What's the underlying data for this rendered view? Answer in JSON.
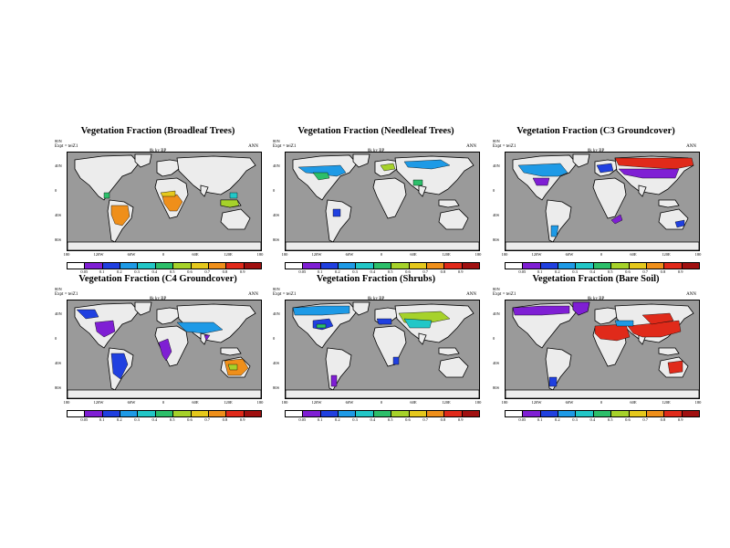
{
  "colorbar": {
    "labels": [
      "0.05",
      "0.1",
      "0.2",
      "0.3",
      "0.4",
      "0.5",
      "0.6",
      "0.7",
      "0.8",
      "0.9"
    ],
    "colors": [
      "#ffffff",
      "#7f1fd4",
      "#2040e0",
      "#1e9ae6",
      "#22c7c7",
      "#2cbf6a",
      "#a6d22a",
      "#e5c81c",
      "#ef8f1a",
      "#e02a1a",
      "#a01010"
    ]
  },
  "axes": {
    "lat_labels": [
      "80N",
      "40N",
      "0",
      "40S",
      "80S"
    ],
    "lon_labels": [
      "180",
      "120W",
      "60W",
      "0",
      "60E",
      "120E",
      "180"
    ]
  },
  "panels": [
    {
      "title": "Vegetation Fraction (Broadleaf Trees)",
      "expt": "Expt = teiZ1",
      "period": "0k ky BP",
      "season": "ANN",
      "vegetation": "broadleaf"
    },
    {
      "title": "Vegetation Fraction (Needleleaf Trees)",
      "expt": "Expt = teiZ1",
      "period": "0k ky BP",
      "season": "ANN",
      "vegetation": "needleleaf"
    },
    {
      "title": "Vegetation Fraction (C3 Groundcover)",
      "expt": "Expt = teiZ1",
      "period": "0k ky BP",
      "season": "ANN",
      "vegetation": "c3"
    },
    {
      "title": "Vegetation Fraction (C4 Groundcover)",
      "expt": "Expt = teiZ1",
      "period": "0k ky BP",
      "season": "ANN",
      "vegetation": "c4"
    },
    {
      "title": "Vegetation Fraction (Shrubs)",
      "expt": "Expt = teiZ1",
      "period": "0k ky BP",
      "season": "ANN",
      "vegetation": "shrubs"
    },
    {
      "title": "Vegetation Fraction (Bare Soil)",
      "expt": "Expt = teiZ1",
      "period": "0k ky BP",
      "season": "ANN",
      "vegetation": "baresoil"
    }
  ]
}
